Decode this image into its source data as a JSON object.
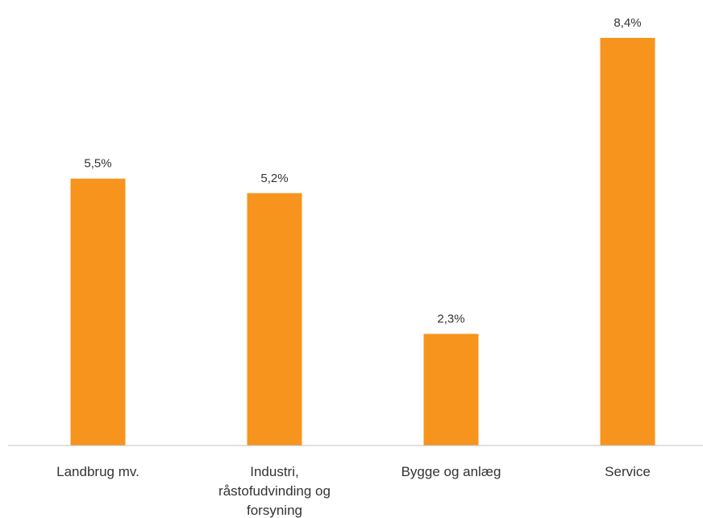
{
  "chart_data": {
    "type": "bar",
    "categories": [
      "Landbrug mv.",
      "Industri, råstofudvinding og forsyning",
      "Bygge og anlæg",
      "Service"
    ],
    "category_lines": [
      [
        "Landbrug mv."
      ],
      [
        "Industri,",
        "råstofudvinding og",
        "forsyning"
      ],
      [
        "Bygge og anlæg"
      ],
      [
        "Service"
      ]
    ],
    "values": [
      5.5,
      5.2,
      2.3,
      8.4
    ],
    "value_labels": [
      "5,5%",
      "5,2%",
      "2,3%",
      "8,4%"
    ],
    "ylim": [
      0,
      8.4
    ],
    "grid": false,
    "legend": "none",
    "bar_color": "#F7941D",
    "axis_color": "#BFBFBF",
    "text_color": "#333333"
  }
}
